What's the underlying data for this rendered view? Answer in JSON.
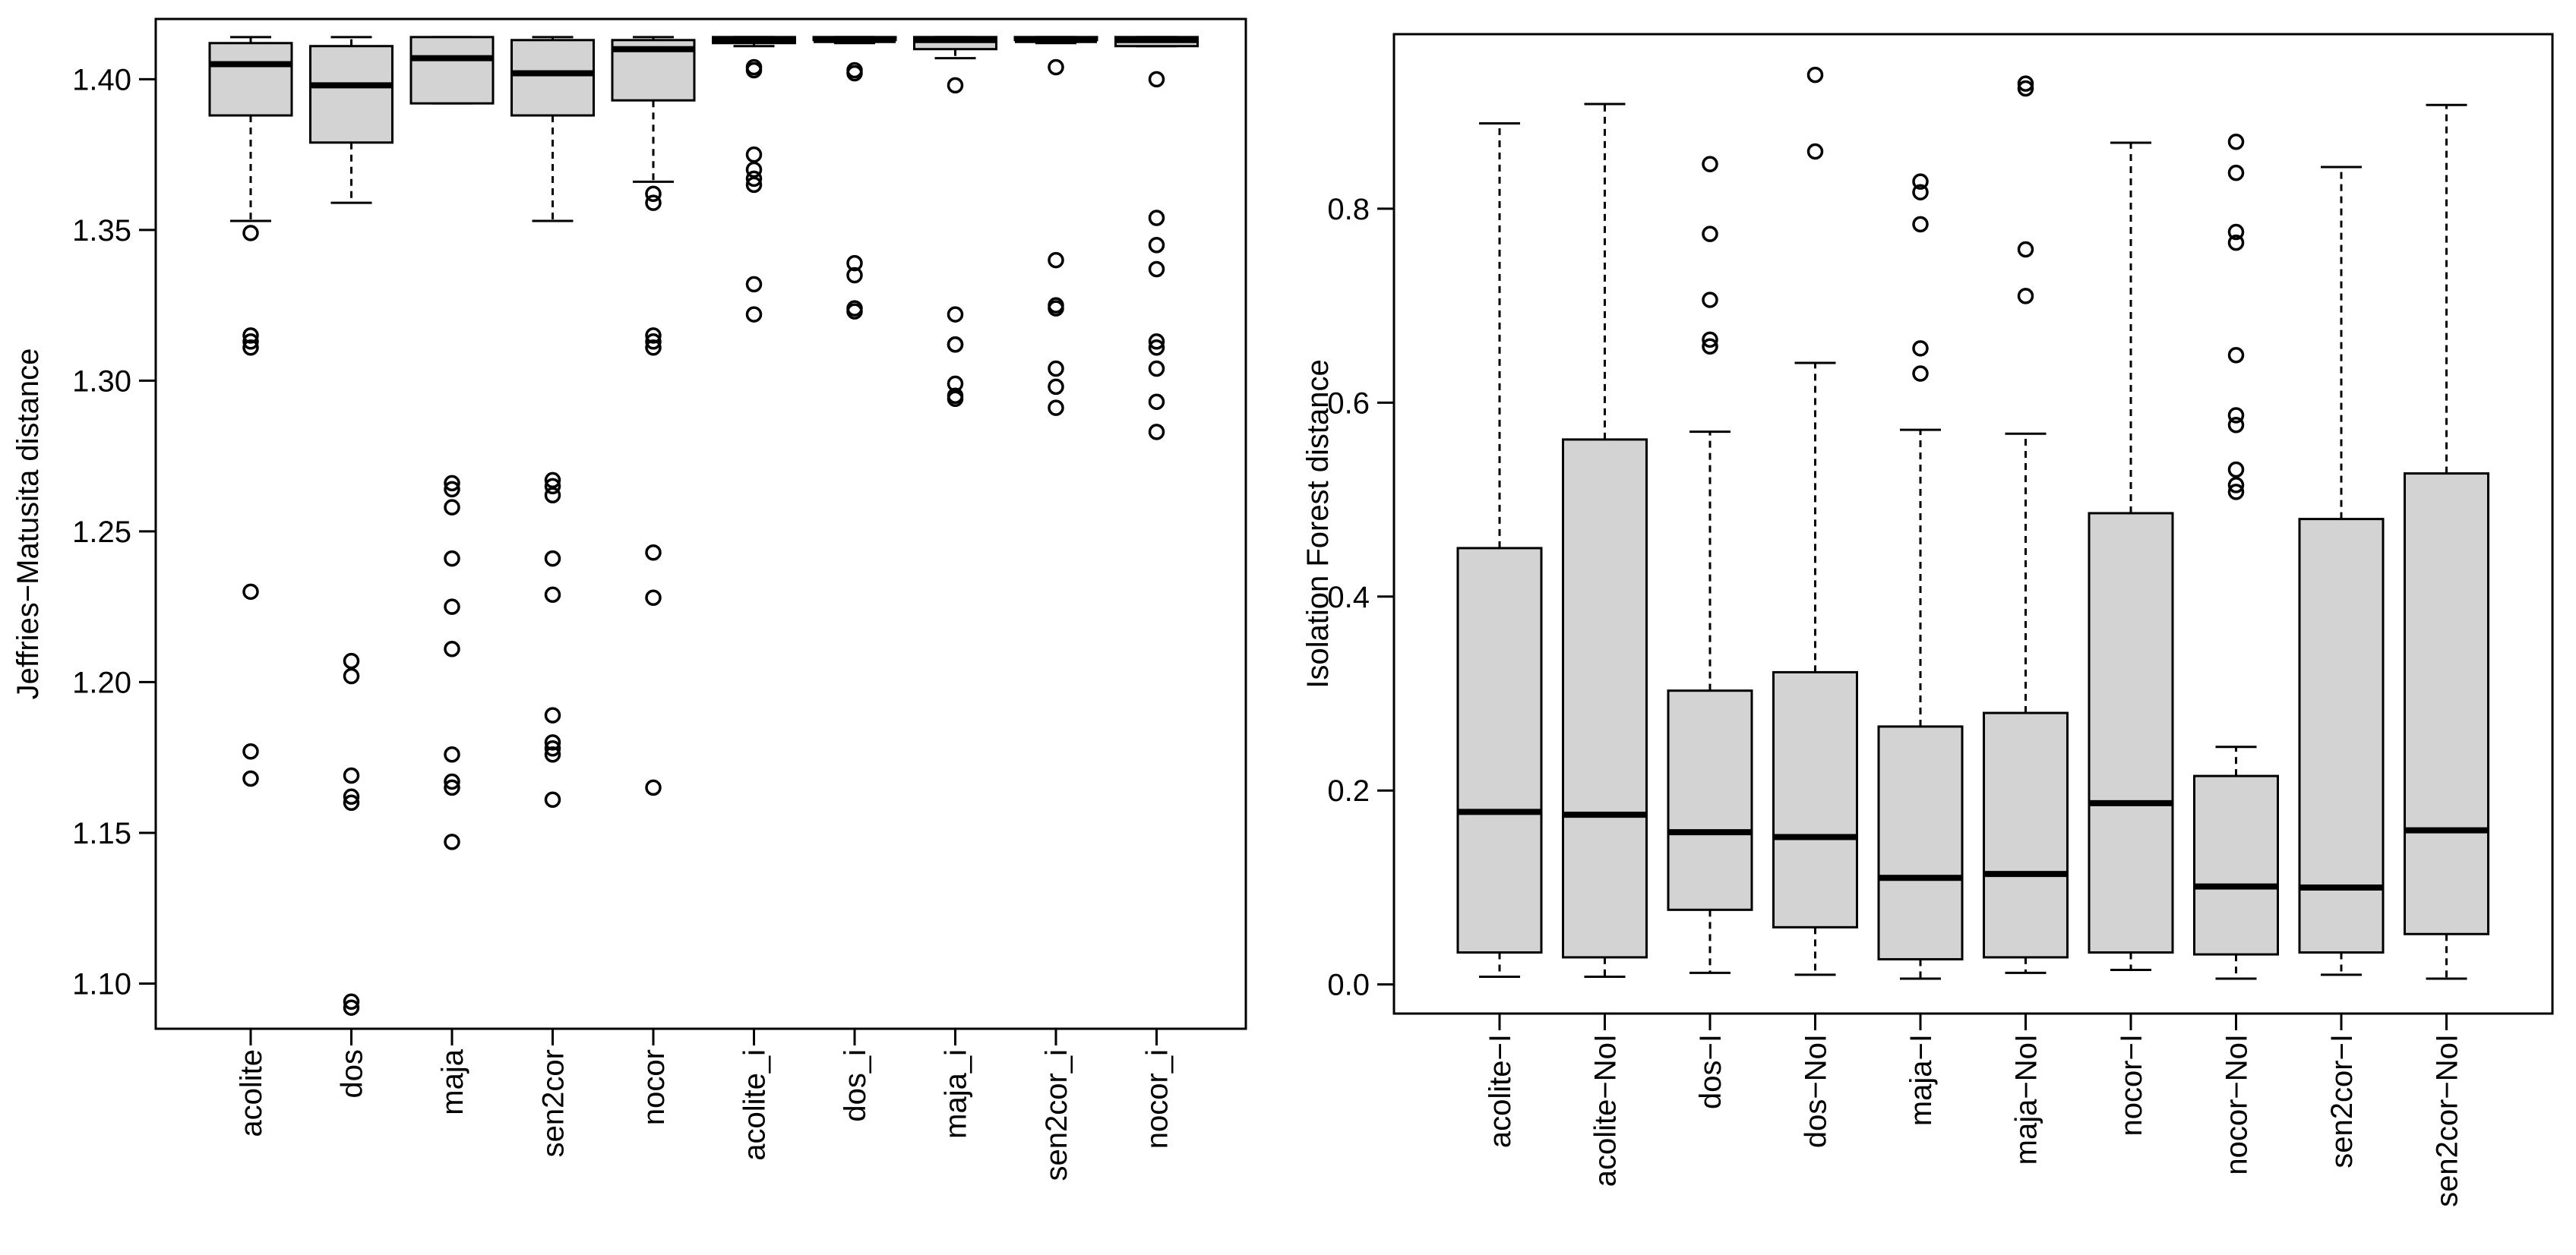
{
  "chart_data": [
    {
      "type": "boxplot",
      "title": "",
      "xlabel": "",
      "ylabel": "Jeffries−Matusita distance",
      "ylim": [
        1.085,
        1.42
      ],
      "yticks": [
        1.1,
        1.15,
        1.2,
        1.25,
        1.3,
        1.35,
        1.4
      ],
      "ytick_labels": [
        "1.10",
        "1.15",
        "1.20",
        "1.25",
        "1.30",
        "1.35",
        "1.40"
      ],
      "categories": [
        "acolite",
        "dos",
        "maja",
        "sen2cor",
        "nocor",
        "acolite_i",
        "dos_i",
        "maja_i",
        "sen2cor_i",
        "nocor_i"
      ],
      "boxes": [
        {
          "whislo": 1.353,
          "q1": 1.388,
          "med": 1.405,
          "q3": 1.412,
          "whishi": 1.414,
          "fliers": [
            1.349,
            1.315,
            1.313,
            1.311,
            1.23,
            1.177,
            1.168
          ]
        },
        {
          "whislo": 1.359,
          "q1": 1.379,
          "med": 1.398,
          "q3": 1.411,
          "whishi": 1.414,
          "fliers": [
            1.207,
            1.202,
            1.169,
            1.162,
            1.16,
            1.094,
            1.092
          ]
        },
        {
          "whislo": 1.392,
          "q1": 1.392,
          "med": 1.407,
          "q3": 1.414,
          "whishi": 1.414,
          "fliers": [
            1.266,
            1.264,
            1.258,
            1.241,
            1.225,
            1.211,
            1.176,
            1.167,
            1.165,
            1.147
          ]
        },
        {
          "whislo": 1.353,
          "q1": 1.388,
          "med": 1.402,
          "q3": 1.413,
          "whishi": 1.414,
          "fliers": [
            1.267,
            1.265,
            1.262,
            1.241,
            1.229,
            1.189,
            1.18,
            1.178,
            1.176,
            1.161
          ]
        },
        {
          "whislo": 1.366,
          "q1": 1.393,
          "med": 1.41,
          "q3": 1.413,
          "whishi": 1.414,
          "fliers": [
            1.362,
            1.359,
            1.315,
            1.313,
            1.311,
            1.243,
            1.228,
            1.165
          ]
        },
        {
          "whislo": 1.411,
          "q1": 1.412,
          "med": 1.413,
          "q3": 1.414,
          "whishi": 1.414,
          "fliers": [
            1.404,
            1.403,
            1.375,
            1.37,
            1.367,
            1.365,
            1.332,
            1.322
          ]
        },
        {
          "whislo": 1.412,
          "q1": 1.413,
          "med": 1.413,
          "q3": 1.414,
          "whishi": 1.414,
          "fliers": [
            1.403,
            1.402,
            1.339,
            1.335,
            1.324,
            1.323
          ]
        },
        {
          "whislo": 1.407,
          "q1": 1.41,
          "med": 1.413,
          "q3": 1.414,
          "whishi": 1.414,
          "fliers": [
            1.398,
            1.322,
            1.312,
            1.312,
            1.299,
            1.295,
            1.294
          ]
        },
        {
          "whislo": 1.412,
          "q1": 1.413,
          "med": 1.413,
          "q3": 1.414,
          "whishi": 1.414,
          "fliers": [
            1.404,
            1.34,
            1.325,
            1.324,
            1.304,
            1.298,
            1.291
          ]
        },
        {
          "whislo": 1.411,
          "q1": 1.411,
          "med": 1.413,
          "q3": 1.414,
          "whishi": 1.414,
          "fliers": [
            1.4,
            1.354,
            1.345,
            1.337,
            1.313,
            1.311,
            1.304,
            1.293,
            1.283
          ]
        }
      ],
      "grid": false
    },
    {
      "type": "boxplot",
      "title": "",
      "xlabel": "",
      "ylabel": "Isolation Forest distance",
      "ylim": [
        -0.03,
        0.98
      ],
      "yticks": [
        0.0,
        0.2,
        0.4,
        0.6,
        0.8
      ],
      "ytick_labels": [
        "0.0",
        "0.2",
        "0.4",
        "0.6",
        "0.8"
      ],
      "categories": [
        "acolite−I",
        "acolite−NoI",
        "dos−I",
        "dos−NoI",
        "maja−I",
        "maja−NoI",
        "nocor−I",
        "nocor−NoI",
        "sen2cor−I",
        "sen2cor−NoI"
      ],
      "boxes": [
        {
          "whislo": 0.008,
          "q1": 0.033,
          "med": 0.178,
          "q3": 0.45,
          "whishi": 0.888,
          "fliers": []
        },
        {
          "whislo": 0.008,
          "q1": 0.028,
          "med": 0.175,
          "q3": 0.562,
          "whishi": 0.908,
          "fliers": []
        },
        {
          "whislo": 0.012,
          "q1": 0.077,
          "med": 0.157,
          "q3": 0.303,
          "whishi": 0.57,
          "fliers": [
            0.846,
            0.774,
            0.706,
            0.665,
            0.658
          ]
        },
        {
          "whislo": 0.01,
          "q1": 0.059,
          "med": 0.152,
          "q3": 0.322,
          "whishi": 0.641,
          "fliers": [
            0.938,
            0.859
          ]
        },
        {
          "whislo": 0.006,
          "q1": 0.026,
          "med": 0.11,
          "q3": 0.266,
          "whishi": 0.572,
          "fliers": [
            0.828,
            0.817,
            0.784,
            0.656,
            0.63
          ]
        },
        {
          "whislo": 0.012,
          "q1": 0.028,
          "med": 0.114,
          "q3": 0.28,
          "whishi": 0.568,
          "fliers": [
            0.929,
            0.924,
            0.758,
            0.71
          ]
        },
        {
          "whislo": 0.015,
          "q1": 0.033,
          "med": 0.187,
          "q3": 0.486,
          "whishi": 0.868,
          "fliers": []
        },
        {
          "whislo": 0.006,
          "q1": 0.031,
          "med": 0.101,
          "q3": 0.215,
          "whishi": 0.245,
          "fliers": [
            0.869,
            0.837,
            0.776,
            0.765,
            0.649,
            0.587,
            0.577,
            0.531,
            0.515,
            0.508
          ]
        },
        {
          "whislo": 0.01,
          "q1": 0.033,
          "med": 0.1,
          "q3": 0.48,
          "whishi": 0.843,
          "fliers": []
        },
        {
          "whislo": 0.006,
          "q1": 0.052,
          "med": 0.159,
          "q3": 0.527,
          "whishi": 0.907,
          "fliers": []
        }
      ],
      "grid": false
    }
  ]
}
